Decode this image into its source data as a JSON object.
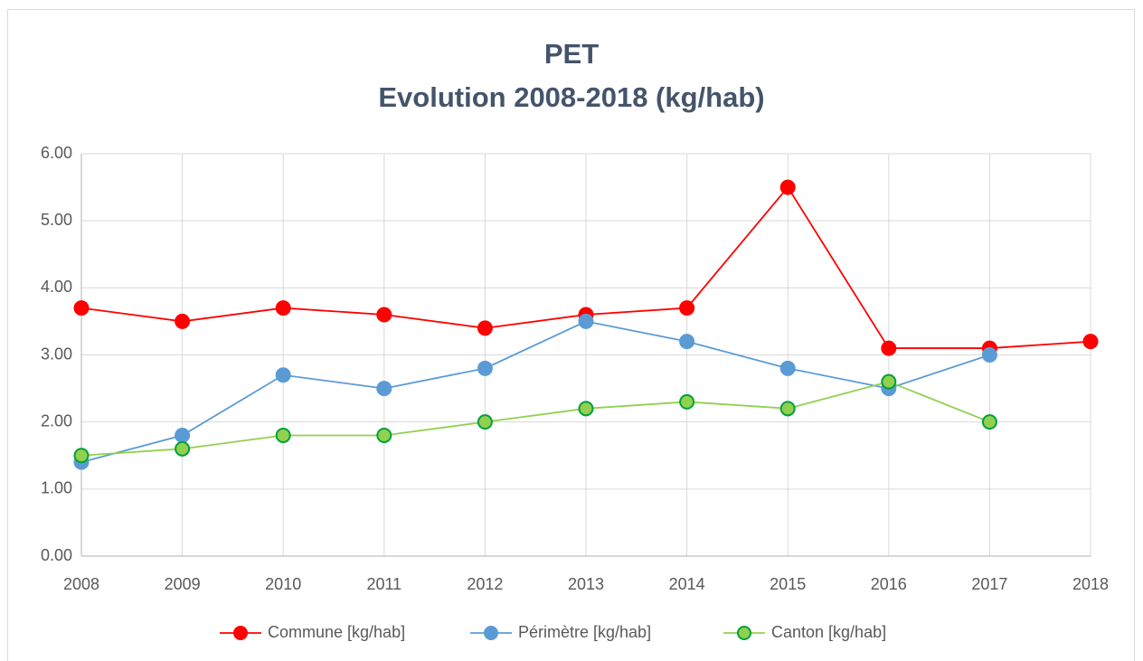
{
  "chart_data": {
    "type": "line",
    "title": "PET",
    "subtitle": "Evolution 2008-2018 (kg/hab)",
    "categories": [
      "2008",
      "2009",
      "2010",
      "2011",
      "2012",
      "2013",
      "2014",
      "2015",
      "2016",
      "2017",
      "2018"
    ],
    "series": [
      {
        "name": "Commune [kg/hab]",
        "color": "#ff0000",
        "values": [
          3.7,
          3.5,
          3.7,
          3.6,
          3.4,
          3.6,
          3.7,
          5.5,
          3.1,
          3.1,
          3.2
        ]
      },
      {
        "name": "Périmètre [kg/hab]",
        "color": "#5b9bd5",
        "values": [
          1.4,
          1.8,
          2.7,
          2.5,
          2.8,
          3.5,
          3.2,
          2.8,
          2.5,
          3.0,
          null
        ]
      },
      {
        "name": "Canton [kg/hab]",
        "color": "#92d050",
        "marker_edge": "#00a03c",
        "values": [
          1.5,
          1.6,
          1.8,
          1.8,
          2.0,
          2.2,
          2.3,
          2.2,
          2.6,
          2.0,
          null
        ]
      }
    ],
    "ylim": [
      0,
      6
    ],
    "yticks": [
      {
        "value": 0,
        "label": "0.00"
      },
      {
        "value": 1,
        "label": "1.00"
      },
      {
        "value": 2,
        "label": "2.00"
      },
      {
        "value": 3,
        "label": "3.00"
      },
      {
        "value": 4,
        "label": "4.00"
      },
      {
        "value": 5,
        "label": "5.00"
      },
      {
        "value": 6,
        "label": "6.00"
      }
    ],
    "grid": true,
    "legend": "bottom"
  }
}
